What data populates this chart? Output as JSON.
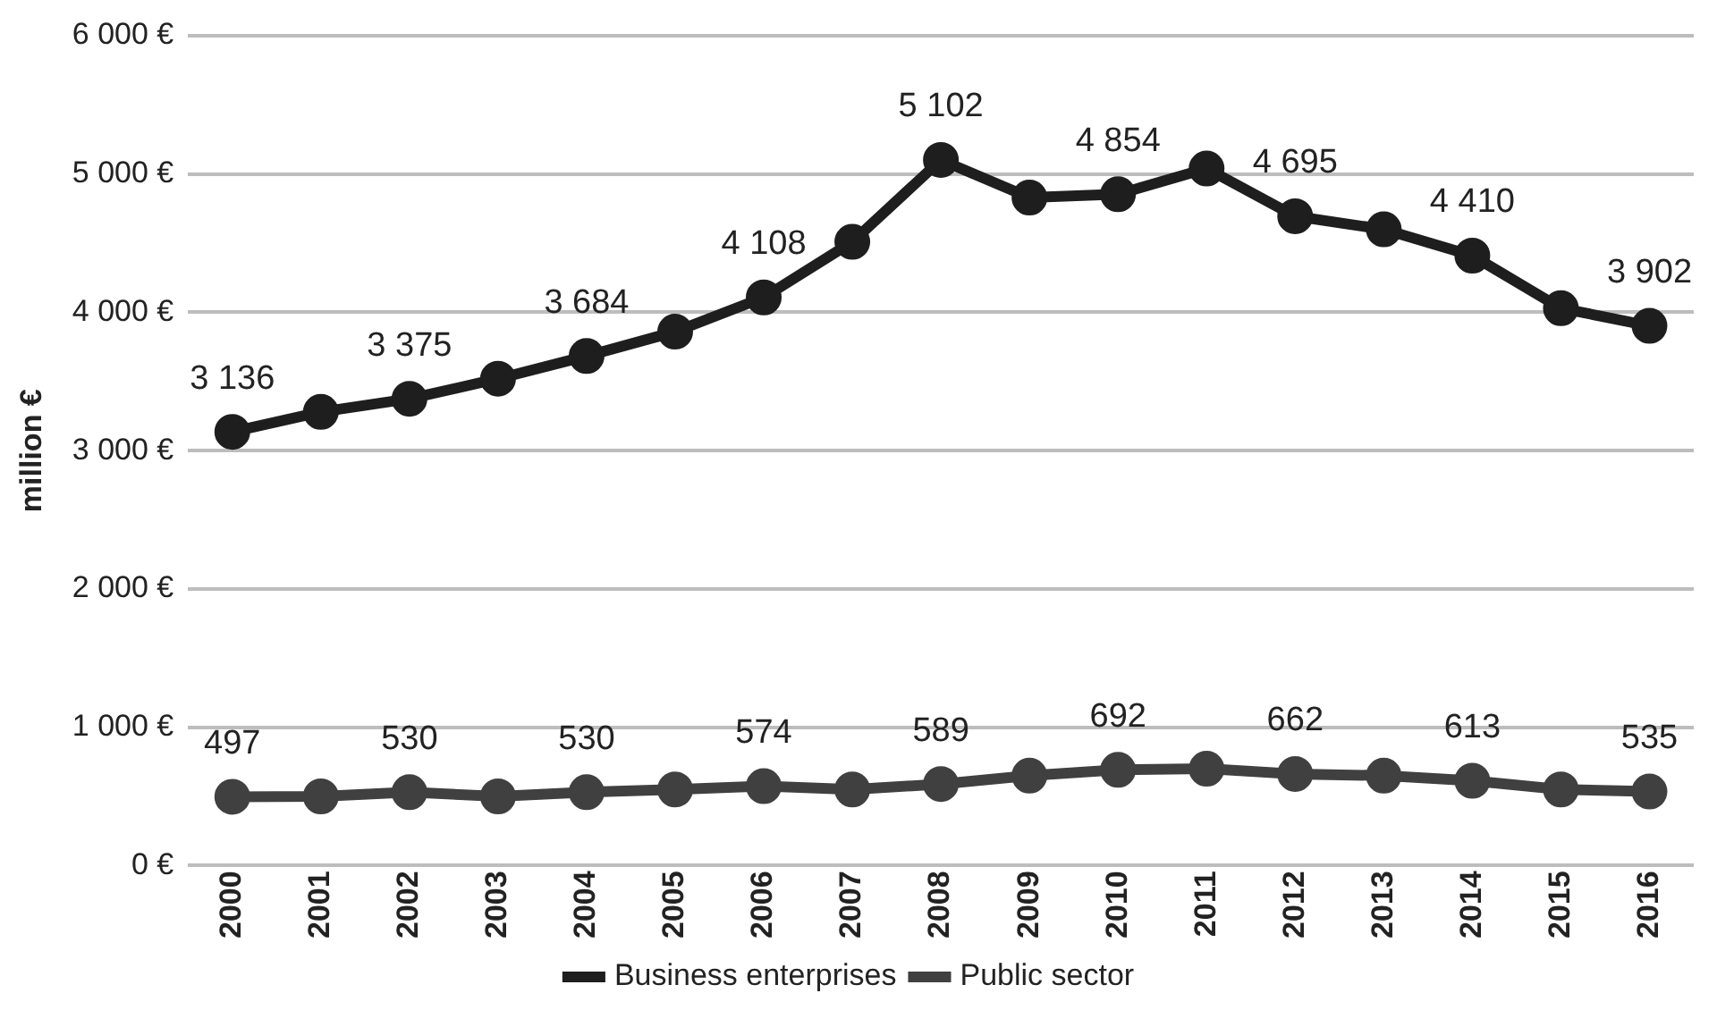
{
  "chart_data": {
    "type": "line",
    "ylabel": "million €",
    "categories": [
      "2000",
      "2001",
      "2002",
      "2003",
      "2004",
      "2005",
      "2006",
      "2007",
      "2008",
      "2009",
      "2010",
      "2011",
      "2012",
      "2013",
      "2014",
      "2015",
      "2016"
    ],
    "series": [
      {
        "name": "Business enterprises",
        "color": "#1e1e1e",
        "values": [
          3136,
          3280,
          3375,
          3520,
          3684,
          3860,
          4108,
          4510,
          5102,
          4830,
          4854,
          5040,
          4695,
          4600,
          4410,
          4030,
          3902
        ],
        "value_labels": [
          "3 136",
          null,
          "3 375",
          null,
          "3 684",
          null,
          "4 108",
          null,
          "5 102",
          null,
          "4 854",
          null,
          "4 695",
          null,
          "4 410",
          null,
          "3 902"
        ]
      },
      {
        "name": "Public sector",
        "color": "#404040",
        "values": [
          497,
          500,
          530,
          500,
          530,
          550,
          574,
          550,
          589,
          650,
          692,
          700,
          662,
          650,
          613,
          550,
          535
        ],
        "value_labels": [
          "497",
          null,
          "530",
          null,
          "530",
          null,
          "574",
          null,
          "589",
          null,
          "692",
          null,
          "662",
          null,
          "613",
          null,
          "535"
        ]
      }
    ],
    "ylim": [
      0,
      6000
    ],
    "yticks": [
      {
        "value": 0,
        "label": "0 €"
      },
      {
        "value": 1000,
        "label": "1 000 €"
      },
      {
        "value": 2000,
        "label": "2 000 €"
      },
      {
        "value": 3000,
        "label": "3 000 €"
      },
      {
        "value": 4000,
        "label": "4 000 €"
      },
      {
        "value": 5000,
        "label": "5 000 €"
      },
      {
        "value": 6000,
        "label": "6 000 €"
      }
    ],
    "grid": "y",
    "legend": "bottom",
    "marker": "circle",
    "line_style": "solid"
  }
}
